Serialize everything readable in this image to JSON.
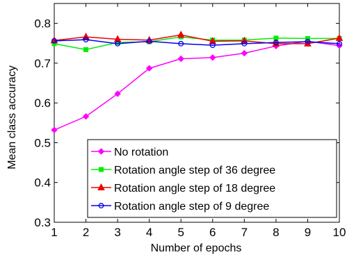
{
  "chart_data": {
    "type": "line",
    "title": "",
    "xlabel": "Number of epochs",
    "ylabel": "Mean class accuracy",
    "xlim": [
      1,
      10
    ],
    "ylim": [
      0.3,
      0.85
    ],
    "xticks": [
      1,
      2,
      3,
      4,
      5,
      6,
      7,
      8,
      9,
      10
    ],
    "yticks": [
      0.3,
      0.4,
      0.5,
      0.6,
      0.7,
      0.8
    ],
    "ytick_labels": [
      "0.3",
      "0.4",
      "0.5",
      "0.6",
      "0.7",
      "0.8"
    ],
    "grid": false,
    "legend_position": "bottom-right",
    "x": [
      1,
      2,
      3,
      4,
      5,
      6,
      7,
      8,
      9,
      10
    ],
    "series": [
      {
        "name": "No rotation",
        "color": "#ff00ff",
        "marker": "diamond",
        "values": [
          0.532,
          0.566,
          0.623,
          0.687,
          0.711,
          0.714,
          0.725,
          0.743,
          0.755,
          0.744
        ]
      },
      {
        "name": "Rotation angle step of 36 degree",
        "color": "#00ee00",
        "marker": "square",
        "values": [
          0.749,
          0.734,
          0.752,
          0.754,
          0.766,
          0.758,
          0.758,
          0.763,
          0.762,
          0.762
        ]
      },
      {
        "name": "Rotation angle step of 18 degree",
        "color": "#ee0000",
        "marker": "triangle",
        "values": [
          0.757,
          0.766,
          0.76,
          0.758,
          0.771,
          0.755,
          0.756,
          0.749,
          0.749,
          0.763
        ]
      },
      {
        "name": "Rotation angle step of 9 degree",
        "color": "#0000ee",
        "marker": "circle",
        "values": [
          0.756,
          0.759,
          0.749,
          0.755,
          0.749,
          0.745,
          0.749,
          0.752,
          0.754,
          0.749
        ]
      }
    ]
  }
}
